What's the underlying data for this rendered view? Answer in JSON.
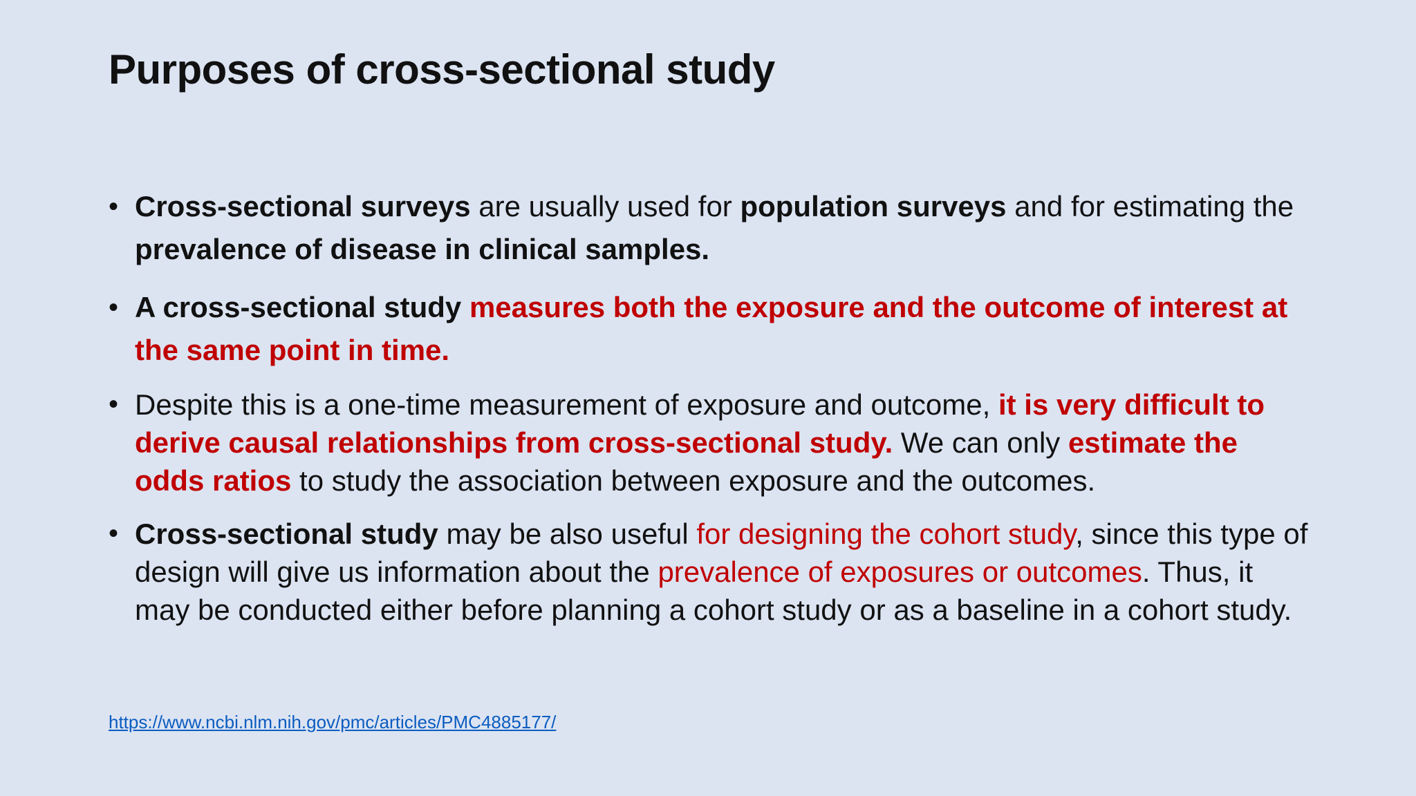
{
  "slide": {
    "title": "Purposes of cross-sectional study",
    "bullets": [
      {
        "segments": [
          {
            "text": "Cross-sectional surveys",
            "bold": true,
            "red": false
          },
          {
            "text": " are usually used for ",
            "bold": false,
            "red": false
          },
          {
            "text": "population surveys",
            "bold": true,
            "red": false
          },
          {
            "text": " and for estimating the ",
            "bold": false,
            "red": false
          },
          {
            "text": "prevalence of disease in clinical samples.",
            "bold": true,
            "red": false
          }
        ]
      },
      {
        "segments": [
          {
            "text": "A cross-sectional study ",
            "bold": true,
            "red": false
          },
          {
            "text": "measures both the exposure and the outcome of interest at the same point in time.",
            "bold": true,
            "red": true
          }
        ]
      },
      {
        "segments": [
          {
            "text": "Despite this is a one-time measurement of exposure and outcome, ",
            "bold": false,
            "red": false
          },
          {
            "text": "it is very difficult to derive causal relationships from cross-sectional study.",
            "bold": true,
            "red": true
          },
          {
            "text": " We can only ",
            "bold": false,
            "red": false
          },
          {
            "text": "estimate the odds ratios",
            "bold": true,
            "red": true
          },
          {
            "text": " to study the association between exposure and the outcomes.",
            "bold": false,
            "red": false
          }
        ]
      },
      {
        "segments": [
          {
            "text": "Cross-sectional study",
            "bold": true,
            "red": false
          },
          {
            "text": " may be also useful ",
            "bold": false,
            "red": false
          },
          {
            "text": "for designing the cohort study",
            "bold": false,
            "red": true
          },
          {
            "text": ", since this type of design will give us information about the ",
            "bold": false,
            "red": false
          },
          {
            "text": "prevalence of exposures or outcomes",
            "bold": false,
            "red": true
          },
          {
            "text": ". Thus, it  may be conducted either before planning a cohort study or as a baseline in a cohort study.",
            "bold": false,
            "red": false
          }
        ]
      }
    ],
    "source_link": "https://www.ncbi.nlm.nih.gov/pmc/articles/PMC4885177/"
  },
  "colors": {
    "background": "#dce4f2",
    "text": "#111111",
    "emphasis_red": "#c00000",
    "link": "#0b5cc0"
  }
}
